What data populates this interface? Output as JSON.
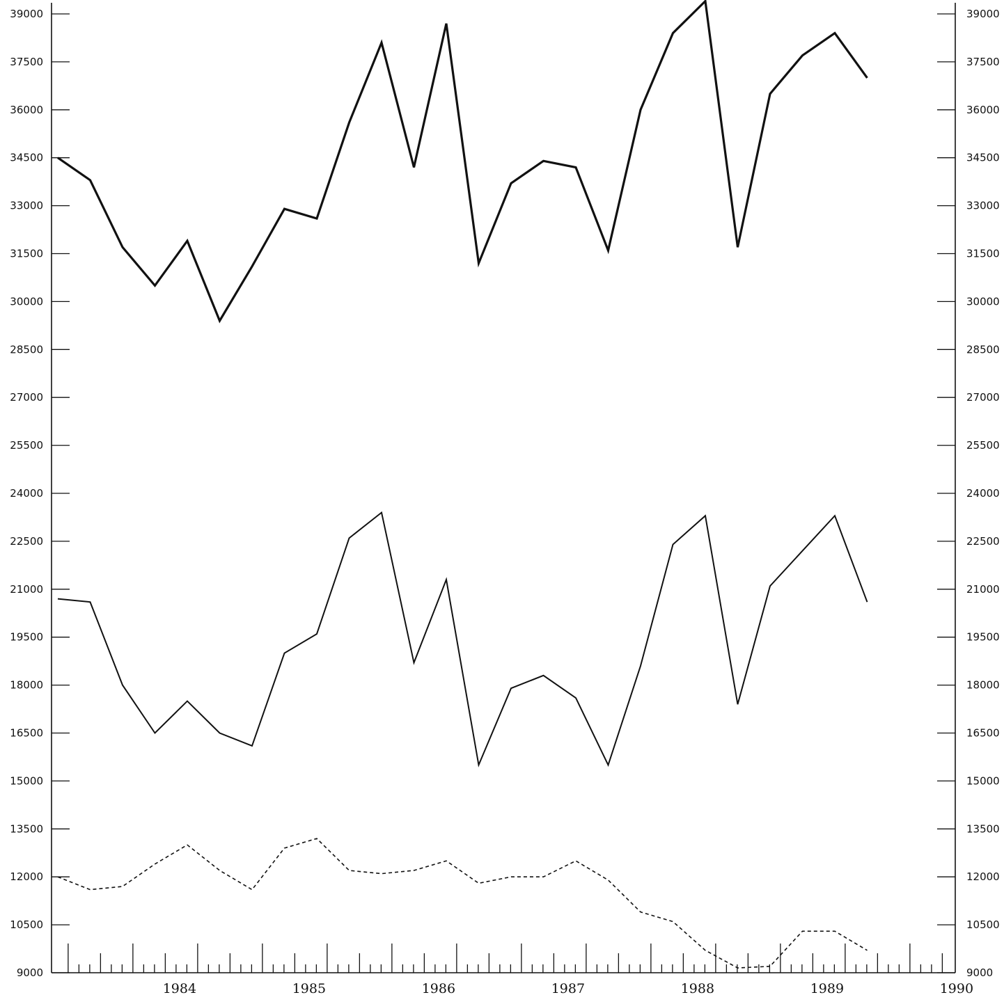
{
  "chart_data": {
    "type": "line",
    "y_ticks": [
      "9000",
      "10500",
      "12000",
      "13500",
      "15000",
      "16500",
      "18000",
      "19500",
      "21000",
      "22500",
      "24000",
      "25500",
      "27000",
      "28500",
      "30000",
      "31500",
      "33000",
      "34500",
      "36000",
      "37500",
      "39000"
    ],
    "y_tick_values": [
      9000,
      10500,
      12000,
      13500,
      15000,
      16500,
      18000,
      19500,
      21000,
      22500,
      24000,
      25500,
      27000,
      28500,
      30000,
      31500,
      33000,
      34500,
      36000,
      37500,
      39000
    ],
    "ylim": [
      9000,
      39400
    ],
    "x_ticks": [
      "1984",
      "1985",
      "1986",
      "1987",
      "1988",
      "1989",
      "1990"
    ],
    "x_tick_values": [
      1984,
      1985,
      1986,
      1987,
      1988,
      1989,
      1990
    ],
    "xlim": [
      1983.4,
      1990.5
    ],
    "grid": false,
    "series": [
      {
        "style": "solid-thick",
        "x": [
          1983.42,
          1983.67,
          1983.92,
          1984.17,
          1984.42,
          1984.67,
          1984.92,
          1985.17,
          1985.42,
          1985.67,
          1985.92,
          1986.17,
          1986.42,
          1986.67,
          1986.92,
          1987.17,
          1987.42,
          1987.67,
          1987.92,
          1988.17,
          1988.42,
          1988.67,
          1988.92,
          1989.17,
          1989.42,
          1989.67,
          1989.92
        ],
        "values": [
          34500,
          33800,
          31700,
          30500,
          31900,
          29400,
          31100,
          32900,
          32600,
          35600,
          38100,
          34200,
          38700,
          31200,
          33700,
          34400,
          34200,
          31600,
          36000,
          38400,
          39400,
          31700,
          36500,
          37700,
          38400,
          37000,
          null
        ]
      },
      {
        "style": "solid",
        "x": [
          1983.42,
          1983.67,
          1983.92,
          1984.17,
          1984.42,
          1984.67,
          1984.92,
          1985.17,
          1985.42,
          1985.67,
          1985.92,
          1986.17,
          1986.42,
          1986.67,
          1986.92,
          1987.17,
          1987.42,
          1987.67,
          1987.92,
          1988.17,
          1988.42,
          1988.67,
          1988.92,
          1989.17,
          1989.42,
          1989.67,
          1989.92
        ],
        "values": [
          20700,
          20600,
          18000,
          16500,
          17500,
          16500,
          16100,
          19000,
          19600,
          22600,
          23400,
          18700,
          21300,
          15500,
          17900,
          18300,
          17600,
          15500,
          18600,
          22400,
          23300,
          17400,
          21100,
          22200,
          23300,
          20600,
          null
        ]
      },
      {
        "style": "dashed",
        "x": [
          1983.42,
          1983.67,
          1983.92,
          1984.17,
          1984.42,
          1984.67,
          1984.92,
          1985.17,
          1985.42,
          1985.67,
          1985.92,
          1986.17,
          1986.42,
          1986.67,
          1986.92,
          1987.17,
          1987.42,
          1987.67,
          1987.92,
          1988.17,
          1988.42,
          1988.67,
          1988.92,
          1989.17,
          1989.42,
          1989.67,
          1989.92
        ],
        "values": [
          12000,
          11600,
          11700,
          12400,
          13000,
          12200,
          11600,
          12900,
          13200,
          12200,
          12100,
          12200,
          12500,
          11800,
          12000,
          12000,
          12500,
          11900,
          10900,
          10600,
          9700,
          9150,
          9200,
          10300,
          10300,
          9700,
          null
        ]
      }
    ]
  }
}
